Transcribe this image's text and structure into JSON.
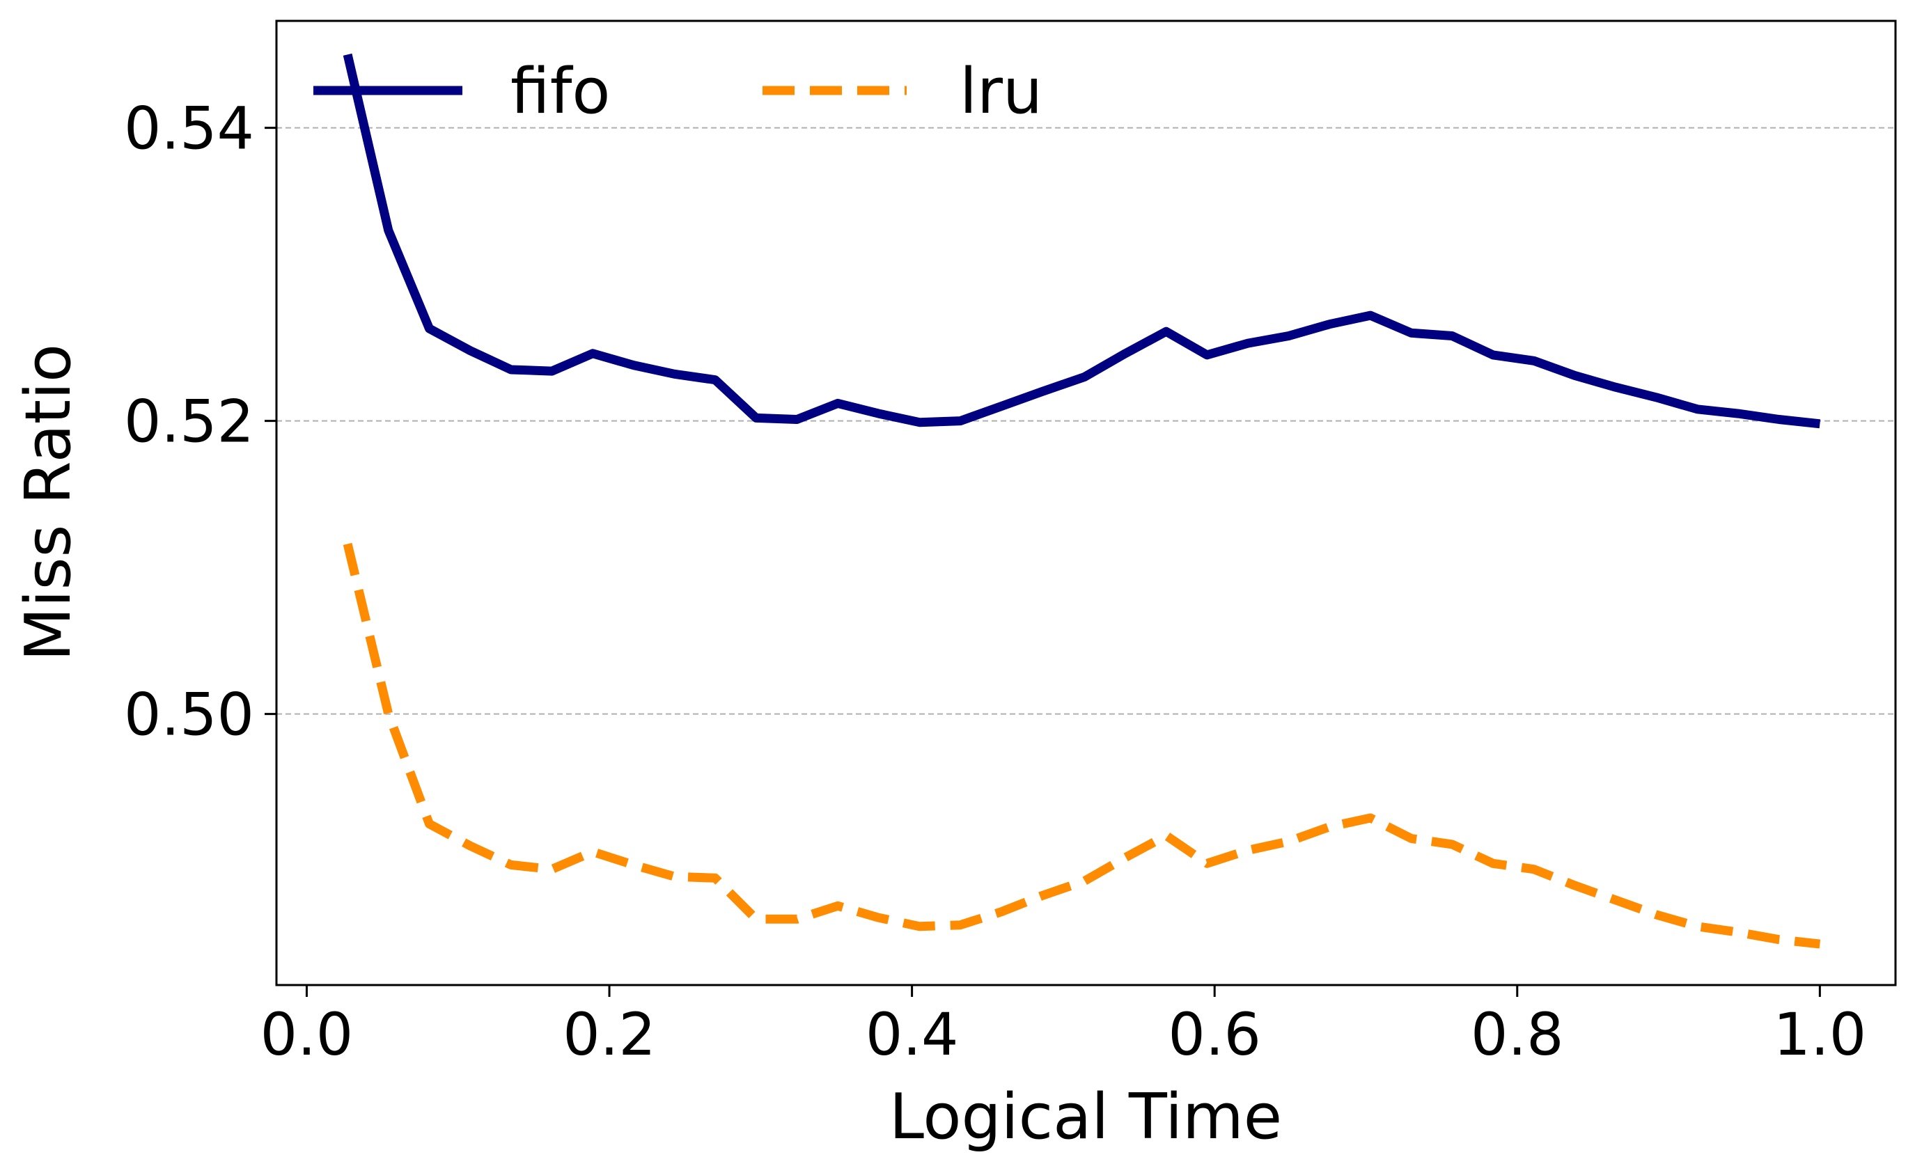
{
  "chart_data": {
    "type": "line",
    "title": "",
    "xlabel": "Logical Time",
    "ylabel": "Miss Ratio",
    "xlim": [
      -0.02,
      1.05
    ],
    "ylim": [
      0.4815,
      0.5473
    ],
    "xticks": [
      0.0,
      0.2,
      0.4,
      0.6,
      0.8,
      1.0
    ],
    "xtick_labels": [
      "0.0",
      "0.2",
      "0.4",
      "0.6",
      "0.8",
      "1.0"
    ],
    "yticks": [
      0.5,
      0.52,
      0.54
    ],
    "ytick_labels": [
      "0.50",
      "0.52",
      "0.54"
    ],
    "grid": "y-dashed",
    "legend": {
      "placement": "top-left",
      "columns": 2
    },
    "series": [
      {
        "name": "fifo",
        "color": "#000080",
        "style": "solid",
        "x": [
          0.027,
          0.054,
          0.081,
          0.108,
          0.135,
          0.162,
          0.189,
          0.216,
          0.243,
          0.27,
          0.297,
          0.324,
          0.351,
          0.378,
          0.405,
          0.432,
          0.459,
          0.486,
          0.514,
          0.541,
          0.568,
          0.595,
          0.622,
          0.649,
          0.676,
          0.703,
          0.73,
          0.757,
          0.784,
          0.811,
          0.838,
          0.865,
          0.892,
          0.919,
          0.946,
          0.973,
          1.0
        ],
        "y": [
          0.545,
          0.533,
          0.5263,
          0.5248,
          0.5235,
          0.5234,
          0.5246,
          0.5238,
          0.5232,
          0.5228,
          0.5202,
          0.5201,
          0.5212,
          0.5205,
          0.5199,
          0.52,
          0.521,
          0.522,
          0.523,
          0.5246,
          0.5261,
          0.5245,
          0.5253,
          0.5258,
          0.5266,
          0.5272,
          0.526,
          0.5258,
          0.5245,
          0.5241,
          0.5231,
          0.5223,
          0.5216,
          0.5208,
          0.5205,
          0.5201,
          0.5198
        ]
      },
      {
        "name": "lru",
        "color": "#ff8c00",
        "style": "dashed",
        "x": [
          0.027,
          0.054,
          0.081,
          0.108,
          0.135,
          0.162,
          0.189,
          0.216,
          0.243,
          0.27,
          0.297,
          0.324,
          0.351,
          0.378,
          0.405,
          0.432,
          0.459,
          0.486,
          0.514,
          0.541,
          0.568,
          0.595,
          0.622,
          0.649,
          0.676,
          0.703,
          0.73,
          0.757,
          0.784,
          0.811,
          0.838,
          0.865,
          0.892,
          0.919,
          0.946,
          0.973,
          1.0
        ],
        "y": [
          0.5116,
          0.5,
          0.4925,
          0.491,
          0.4897,
          0.4894,
          0.4906,
          0.4897,
          0.4889,
          0.4888,
          0.486,
          0.486,
          0.4869,
          0.4861,
          0.4855,
          0.4856,
          0.4865,
          0.4876,
          0.4886,
          0.4902,
          0.4917,
          0.4898,
          0.4907,
          0.4913,
          0.4923,
          0.4929,
          0.4915,
          0.4911,
          0.4898,
          0.4894,
          0.4883,
          0.4873,
          0.4863,
          0.4855,
          0.4851,
          0.4846,
          0.4843
        ]
      }
    ]
  }
}
